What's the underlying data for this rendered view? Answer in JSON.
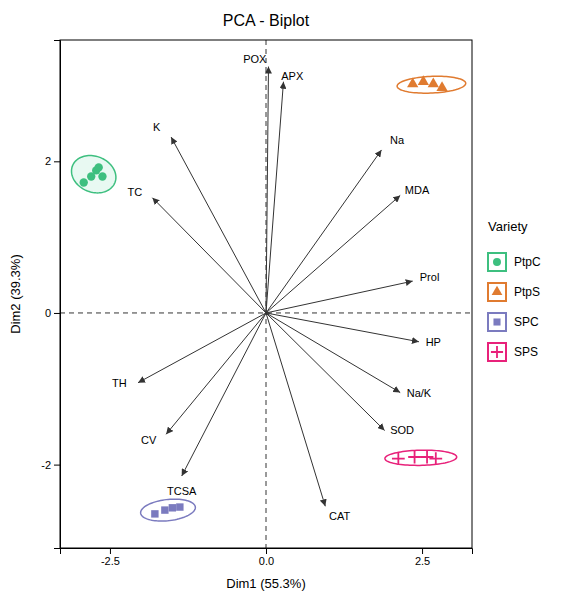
{
  "chart_data": {
    "type": "scatter",
    "title": "PCA - Biplot",
    "xlabel": "Dim1 (55.3%)",
    "ylabel": "Dim2 (39.3%)",
    "xlim": [
      -3.3,
      3.3
    ],
    "ylim": [
      -3.1,
      3.6
    ],
    "xticks": [
      -2.5,
      {
        "value": 0,
        "label": "0.0"
      },
      2.5
    ],
    "yticks": [
      -2,
      0,
      2
    ],
    "grid": false,
    "legend": "right",
    "legend_title": "Variety",
    "reference_lines": {
      "x": [
        0
      ],
      "y": [
        0
      ]
    },
    "arrows": [
      {
        "name": "POX",
        "x": 0.04,
        "y": 3.25,
        "label_x": -0.18,
        "label_y": 3.35
      },
      {
        "name": "APX",
        "x": 0.28,
        "y": 3.05,
        "label_x": 0.42,
        "label_y": 3.13
      },
      {
        "name": "Na",
        "x": 1.85,
        "y": 2.15,
        "label_x": 2.1,
        "label_y": 2.28
      },
      {
        "name": "MDA",
        "x": 2.15,
        "y": 1.55,
        "label_x": 2.42,
        "label_y": 1.62
      },
      {
        "name": "Prol",
        "x": 2.35,
        "y": 0.42,
        "label_x": 2.62,
        "label_y": 0.48
      },
      {
        "name": "HP",
        "x": 2.45,
        "y": -0.38,
        "label_x": 2.68,
        "label_y": -0.38
      },
      {
        "name": "Na/K",
        "x": 2.15,
        "y": -1.05,
        "label_x": 2.45,
        "label_y": -1.05
      },
      {
        "name": "SOD",
        "x": 1.9,
        "y": -1.55,
        "label_x": 2.18,
        "label_y": -1.55
      },
      {
        "name": "CAT",
        "x": 0.95,
        "y": -2.55,
        "label_x": 1.18,
        "label_y": -2.68
      },
      {
        "name": "TCSA",
        "x": -1.35,
        "y": -2.15,
        "label_x": -1.35,
        "label_y": -2.35
      },
      {
        "name": "CV",
        "x": -1.6,
        "y": -1.6,
        "label_x": -1.88,
        "label_y": -1.68
      },
      {
        "name": "TH",
        "x": -2.05,
        "y": -0.92,
        "label_x": -2.35,
        "label_y": -0.92
      },
      {
        "name": "TC",
        "x": -1.82,
        "y": 1.52,
        "label_x": -2.1,
        "label_y": 1.6
      },
      {
        "name": "K",
        "x": -1.52,
        "y": 2.32,
        "label_x": -1.75,
        "label_y": 2.45
      }
    ],
    "series": [
      {
        "name": "PtpC",
        "color": "#3dbf7f",
        "marker": "circle",
        "x": [
          -2.92,
          -2.8,
          -2.72,
          -2.68,
          -2.62
        ],
        "values": [
          1.72,
          1.8,
          1.88,
          1.92,
          1.8
        ],
        "ellipse": {
          "cx": -2.76,
          "cy": 1.83,
          "width": 0.72,
          "height": 0.48,
          "angle": -12,
          "color": "#d8f5ea"
        }
      },
      {
        "name": "PtpS",
        "color": "#e07b30",
        "marker": "triangle",
        "x": [
          2.35,
          2.52,
          2.68,
          2.82
        ],
        "values": [
          3.02,
          3.05,
          3.02,
          2.97
        ],
        "ellipse": {
          "cx": 2.65,
          "cy": 3.01,
          "width": 1.1,
          "height": 0.22,
          "angle": 2
        }
      },
      {
        "name": "SPC",
        "color": "#7b7bbf",
        "marker": "square",
        "x": [
          -1.78,
          -1.62,
          -1.5,
          -1.38
        ],
        "values": [
          -2.65,
          -2.6,
          -2.57,
          -2.56
        ],
        "ellipse": {
          "cx": -1.57,
          "cy": -2.6,
          "width": 0.88,
          "height": 0.28,
          "angle": 5
        }
      },
      {
        "name": "SPS",
        "color": "#e8217a",
        "marker": "plus",
        "x": [
          2.12,
          2.38,
          2.58,
          2.72
        ],
        "values": [
          -1.92,
          -1.9,
          -1.9,
          -1.92
        ],
        "ellipse": {
          "cx": 2.48,
          "cy": -1.91,
          "width": 1.15,
          "height": 0.2,
          "angle": 1
        }
      }
    ]
  }
}
